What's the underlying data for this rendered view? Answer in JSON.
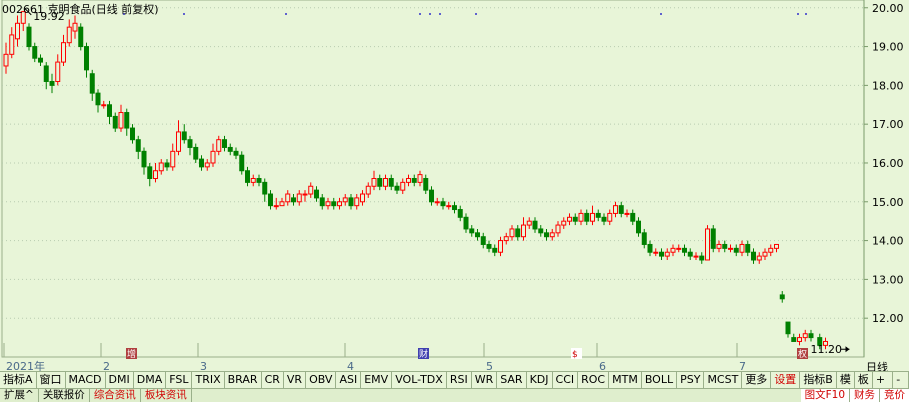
{
  "header": {
    "code": "002661",
    "name": "克明食品",
    "paren": "(日线 前复权)"
  },
  "chart_data": {
    "type": "candlestick",
    "title": "002661 克明食品(日线 前复权)",
    "y_ticks": [
      "20.00",
      "19.00",
      "18.00",
      "17.00",
      "16.00",
      "15.00",
      "14.00",
      "13.00",
      "12.00"
    ],
    "ylim": [
      11.0,
      20.2
    ],
    "x_labels": [
      "2021年",
      "2",
      "3",
      "4",
      "5",
      "6",
      "7"
    ],
    "event_markers": [
      "增",
      "财",
      "$",
      "权"
    ],
    "annotations": {
      "high": "19.92",
      "low": "11.20"
    },
    "up_color": "#ff0000",
    "down_color": "#008000",
    "candles": [
      [
        18.5,
        18.8,
        19.1,
        18.3
      ],
      [
        18.8,
        19.3,
        19.5,
        18.7
      ],
      [
        19.2,
        19.6,
        19.8,
        19.0
      ],
      [
        19.6,
        19.9,
        19.92,
        19.4
      ],
      [
        19.5,
        19.0,
        19.6,
        18.9
      ],
      [
        19.0,
        18.7,
        19.1,
        18.6
      ],
      [
        18.7,
        18.6,
        18.8,
        18.5
      ],
      [
        18.5,
        18.1,
        18.6,
        17.9
      ],
      [
        18.1,
        18.0,
        18.3,
        17.8
      ],
      [
        18.1,
        18.6,
        18.8,
        18.0
      ],
      [
        18.6,
        19.1,
        19.3,
        18.5
      ],
      [
        19.1,
        19.5,
        19.7,
        19.0
      ],
      [
        19.4,
        19.6,
        19.8,
        19.2
      ],
      [
        19.5,
        19.0,
        19.6,
        18.9
      ],
      [
        19.0,
        18.4,
        19.1,
        18.2
      ],
      [
        18.3,
        17.8,
        18.4,
        17.6
      ],
      [
        17.8,
        17.5,
        17.9,
        17.3
      ],
      [
        17.5,
        17.5,
        17.6,
        17.4
      ],
      [
        17.5,
        17.2,
        17.6,
        17.0
      ],
      [
        17.2,
        16.9,
        17.3,
        16.8
      ],
      [
        16.9,
        17.3,
        17.5,
        16.8
      ],
      [
        17.3,
        16.9,
        17.4,
        16.7
      ],
      [
        16.9,
        16.6,
        17.0,
        16.5
      ],
      [
        16.6,
        16.3,
        16.7,
        16.1
      ],
      [
        16.3,
        15.9,
        16.4,
        15.7
      ],
      [
        15.9,
        15.6,
        16.0,
        15.4
      ],
      [
        15.6,
        15.8,
        16.0,
        15.5
      ],
      [
        15.8,
        16.0,
        16.1,
        15.7
      ],
      [
        16.0,
        15.9,
        16.1,
        15.8
      ],
      [
        15.9,
        16.3,
        16.5,
        15.8
      ],
      [
        16.3,
        16.8,
        17.1,
        16.2
      ],
      [
        16.8,
        16.6,
        17.0,
        16.5
      ],
      [
        16.6,
        16.4,
        16.7,
        16.2
      ],
      [
        16.4,
        16.1,
        16.5,
        16.0
      ],
      [
        16.1,
        15.9,
        16.2,
        15.8
      ],
      [
        15.9,
        16.0,
        16.1,
        15.8
      ],
      [
        16.0,
        16.3,
        16.5,
        15.9
      ],
      [
        16.3,
        16.6,
        16.7,
        16.2
      ],
      [
        16.6,
        16.4,
        16.7,
        16.3
      ],
      [
        16.4,
        16.3,
        16.5,
        16.2
      ],
      [
        16.3,
        16.2,
        16.4,
        16.1
      ],
      [
        16.2,
        15.8,
        16.3,
        15.7
      ],
      [
        15.8,
        15.5,
        15.9,
        15.4
      ],
      [
        15.5,
        15.6,
        15.7,
        15.4
      ],
      [
        15.6,
        15.5,
        15.7,
        15.4
      ],
      [
        15.5,
        15.2,
        15.6,
        15.0
      ],
      [
        15.2,
        14.9,
        15.3,
        14.8
      ],
      [
        14.9,
        14.9,
        15.1,
        14.8
      ],
      [
        14.9,
        15.0,
        15.1,
        14.9
      ],
      [
        15.0,
        15.2,
        15.3,
        14.9
      ],
      [
        15.1,
        15.0,
        15.2,
        14.9
      ],
      [
        15.0,
        15.2,
        15.3,
        14.9
      ],
      [
        15.2,
        15.2,
        15.3,
        15.0
      ],
      [
        15.2,
        15.4,
        15.5,
        15.1
      ],
      [
        15.3,
        15.1,
        15.4,
        15.0
      ],
      [
        15.1,
        14.9,
        15.2,
        14.8
      ],
      [
        14.9,
        15.0,
        15.1,
        14.8
      ],
      [
        15.0,
        14.9,
        15.1,
        14.8
      ],
      [
        14.9,
        15.0,
        15.1,
        14.8
      ],
      [
        15.0,
        15.1,
        15.2,
        14.9
      ],
      [
        15.1,
        14.9,
        15.2,
        14.8
      ],
      [
        14.9,
        15.1,
        15.2,
        14.8
      ],
      [
        15.0,
        15.2,
        15.3,
        14.9
      ],
      [
        15.2,
        15.4,
        15.5,
        15.1
      ],
      [
        15.4,
        15.6,
        15.8,
        15.3
      ],
      [
        15.6,
        15.4,
        15.7,
        15.3
      ],
      [
        15.4,
        15.6,
        15.7,
        15.3
      ],
      [
        15.6,
        15.4,
        15.7,
        15.3
      ],
      [
        15.4,
        15.3,
        15.5,
        15.2
      ],
      [
        15.3,
        15.5,
        15.6,
        15.2
      ],
      [
        15.5,
        15.6,
        15.7,
        15.4
      ],
      [
        15.6,
        15.5,
        15.7,
        15.4
      ],
      [
        15.5,
        15.7,
        15.8,
        15.4
      ],
      [
        15.6,
        15.3,
        15.7,
        15.2
      ],
      [
        15.3,
        15.0,
        15.4,
        14.9
      ],
      [
        15.0,
        15.0,
        15.1,
        14.9
      ],
      [
        15.0,
        14.9,
        15.1,
        14.8
      ],
      [
        14.9,
        14.9,
        15.0,
        14.8
      ],
      [
        14.9,
        14.8,
        15.0,
        14.7
      ],
      [
        14.8,
        14.6,
        14.9,
        14.5
      ],
      [
        14.6,
        14.3,
        14.7,
        14.2
      ],
      [
        14.3,
        14.2,
        14.4,
        14.1
      ],
      [
        14.2,
        14.1,
        14.3,
        14.0
      ],
      [
        14.1,
        13.9,
        14.2,
        13.8
      ],
      [
        13.9,
        13.8,
        14.0,
        13.7
      ],
      [
        13.8,
        13.7,
        13.9,
        13.6
      ],
      [
        13.7,
        14.0,
        14.1,
        13.6
      ],
      [
        14.0,
        14.1,
        14.2,
        13.9
      ],
      [
        14.1,
        14.3,
        14.4,
        14.0
      ],
      [
        14.3,
        14.1,
        14.4,
        14.0
      ],
      [
        14.1,
        14.4,
        14.6,
        14.0
      ],
      [
        14.4,
        14.5,
        14.6,
        14.3
      ],
      [
        14.5,
        14.3,
        14.6,
        14.2
      ],
      [
        14.3,
        14.2,
        14.4,
        14.1
      ],
      [
        14.2,
        14.1,
        14.3,
        14.0
      ],
      [
        14.1,
        14.2,
        14.3,
        14.0
      ],
      [
        14.2,
        14.4,
        14.5,
        14.1
      ],
      [
        14.4,
        14.5,
        14.6,
        14.3
      ],
      [
        14.5,
        14.6,
        14.7,
        14.4
      ],
      [
        14.6,
        14.5,
        14.7,
        14.4
      ],
      [
        14.5,
        14.7,
        14.8,
        14.4
      ],
      [
        14.7,
        14.5,
        14.8,
        14.4
      ],
      [
        14.5,
        14.7,
        14.9,
        14.4
      ],
      [
        14.7,
        14.6,
        14.8,
        14.5
      ],
      [
        14.6,
        14.5,
        14.7,
        14.4
      ],
      [
        14.5,
        14.7,
        14.8,
        14.4
      ],
      [
        14.7,
        14.9,
        15.0,
        14.6
      ],
      [
        14.9,
        14.7,
        15.0,
        14.6
      ],
      [
        14.7,
        14.7,
        14.8,
        14.6
      ],
      [
        14.7,
        14.5,
        14.8,
        14.4
      ],
      [
        14.5,
        14.2,
        14.6,
        14.1
      ],
      [
        14.2,
        13.9,
        14.3,
        13.8
      ],
      [
        13.9,
        13.7,
        14.0,
        13.6
      ],
      [
        13.7,
        13.7,
        13.8,
        13.6
      ],
      [
        13.7,
        13.6,
        13.8,
        13.5
      ],
      [
        13.6,
        13.7,
        13.8,
        13.5
      ],
      [
        13.7,
        13.8,
        13.9,
        13.6
      ],
      [
        13.8,
        13.8,
        13.9,
        13.7
      ],
      [
        13.8,
        13.7,
        13.9,
        13.6
      ],
      [
        13.7,
        13.6,
        13.8,
        13.5
      ],
      [
        13.6,
        13.6,
        13.7,
        13.5
      ],
      [
        13.6,
        13.5,
        13.7,
        13.4
      ],
      [
        13.5,
        14.3,
        14.4,
        13.5
      ],
      [
        14.3,
        13.8,
        14.4,
        13.7
      ],
      [
        13.8,
        13.9,
        14.0,
        13.7
      ],
      [
        13.9,
        13.8,
        14.0,
        13.7
      ],
      [
        13.8,
        13.8,
        13.9,
        13.7
      ],
      [
        13.8,
        13.7,
        13.9,
        13.6
      ],
      [
        13.7,
        13.9,
        14.0,
        13.6
      ],
      [
        13.9,
        13.7,
        14.0,
        13.6
      ],
      [
        13.7,
        13.5,
        13.8,
        13.4
      ],
      [
        13.5,
        13.6,
        13.7,
        13.4
      ],
      [
        13.6,
        13.7,
        13.8,
        13.5
      ],
      [
        13.7,
        13.8,
        13.9,
        13.6
      ],
      [
        13.8,
        13.9,
        13.9,
        13.7
      ],
      [
        12.6,
        12.5,
        12.7,
        12.4
      ],
      [
        11.9,
        11.6,
        11.9,
        11.5
      ],
      [
        11.5,
        11.4,
        11.6,
        11.4
      ],
      [
        11.4,
        11.5,
        11.6,
        11.3
      ],
      [
        11.5,
        11.6,
        11.7,
        11.4
      ],
      [
        11.6,
        11.5,
        11.7,
        11.4
      ],
      [
        11.5,
        11.3,
        11.6,
        11.2
      ],
      [
        11.3,
        11.4,
        11.5,
        11.2
      ]
    ]
  },
  "indicators": {
    "left": [
      "指标A",
      "窗口",
      "MACD",
      "DMI",
      "DMA",
      "FSL",
      "TRIX",
      "BRAR",
      "CR",
      "VR",
      "OBV",
      "ASI",
      "EMV",
      "VOL-TDX",
      "RSI",
      "WR",
      "SAR",
      "KDJ",
      "CCI",
      "ROC",
      "MTM",
      "BOLL",
      "PSY",
      "MCST",
      "更多"
    ],
    "settings": "设置",
    "right": [
      "指标B",
      "模",
      "板"
    ]
  },
  "period": "日线",
  "bottom": {
    "expand": "扩展",
    "arrow": "^",
    "related": "关联报价",
    "news": "综合资讯",
    "sector_news": "板块资讯",
    "f10": "图文F10",
    "finance": "财务",
    "bid": "竞价"
  }
}
